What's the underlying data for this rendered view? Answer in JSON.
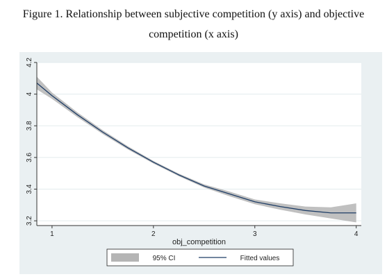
{
  "caption": {
    "line1": "Figure 1. Relationship between subjective competition (y axis) and objective",
    "line2": "competition (x axis)"
  },
  "chart_data": {
    "type": "line",
    "title": "",
    "xlabel": "obj_competition",
    "ylabel": "",
    "xlim": [
      0.85,
      4.05
    ],
    "ylim": [
      3.17,
      4.2
    ],
    "x_ticks": [
      "1",
      "2",
      "3",
      "4"
    ],
    "y_ticks": [
      "3.2",
      "3.4",
      "3.6",
      "3.8",
      "4",
      "4.2"
    ],
    "grid": true,
    "legend_position": "bottom",
    "series": [
      {
        "name": "Fitted values",
        "x": [
          0.85,
          1.0,
          1.25,
          1.5,
          1.75,
          2.0,
          2.25,
          2.5,
          2.75,
          3.0,
          3.25,
          3.5,
          3.75,
          4.0
        ],
        "y": [
          4.07,
          3.99,
          3.87,
          3.76,
          3.66,
          3.57,
          3.49,
          3.42,
          3.37,
          3.32,
          3.29,
          3.265,
          3.25,
          3.25
        ],
        "ci_low": [
          4.03,
          3.97,
          3.855,
          3.748,
          3.65,
          3.562,
          3.482,
          3.41,
          3.355,
          3.305,
          3.27,
          3.24,
          3.215,
          3.19
        ],
        "ci_high": [
          4.11,
          4.01,
          3.885,
          3.772,
          3.67,
          3.578,
          3.498,
          3.43,
          3.385,
          3.335,
          3.31,
          3.29,
          3.285,
          3.31
        ]
      }
    ],
    "legend": [
      {
        "label": "95% CI",
        "kind": "band",
        "color": "#b5b5b5"
      },
      {
        "label": "Fitted values",
        "kind": "line",
        "color": "#1e3d66"
      }
    ],
    "colors": {
      "panel_bg": "#eaf0f2",
      "plot_bg": "#ffffff",
      "grid": "#e3ebee",
      "band": "#b5b5b5",
      "line": "#1e3d66"
    }
  }
}
